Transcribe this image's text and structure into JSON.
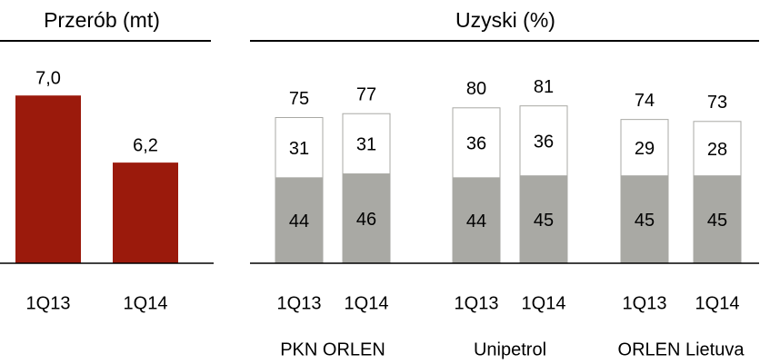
{
  "chart_data": [
    {
      "type": "bar",
      "title": "Przerób (mt)",
      "categories": [
        "1Q13",
        "1Q14"
      ],
      "values": [
        7.0,
        6.2
      ],
      "value_labels": [
        "7,0",
        "6,2"
      ],
      "color": "#9b1a0c",
      "ylim": [
        5,
        7.5
      ]
    },
    {
      "type": "stacked_bar",
      "title": "Uzyski (%)",
      "categories": [
        "1Q13",
        "1Q14",
        "1Q13",
        "1Q14",
        "1Q13",
        "1Q14"
      ],
      "groups": [
        "PKN ORLEN",
        "Unipetrol",
        "ORLEN Lietuva"
      ],
      "series": [
        {
          "color": "#a9a9a4",
          "values": [
            44,
            46,
            44,
            45,
            45,
            45
          ]
        },
        {
          "color": "#ffffff",
          "values": [
            31,
            31,
            36,
            36,
            29,
            28
          ]
        }
      ],
      "totals": [
        75,
        77,
        80,
        81,
        74,
        73
      ],
      "ylim": [
        0,
        100
      ]
    }
  ]
}
